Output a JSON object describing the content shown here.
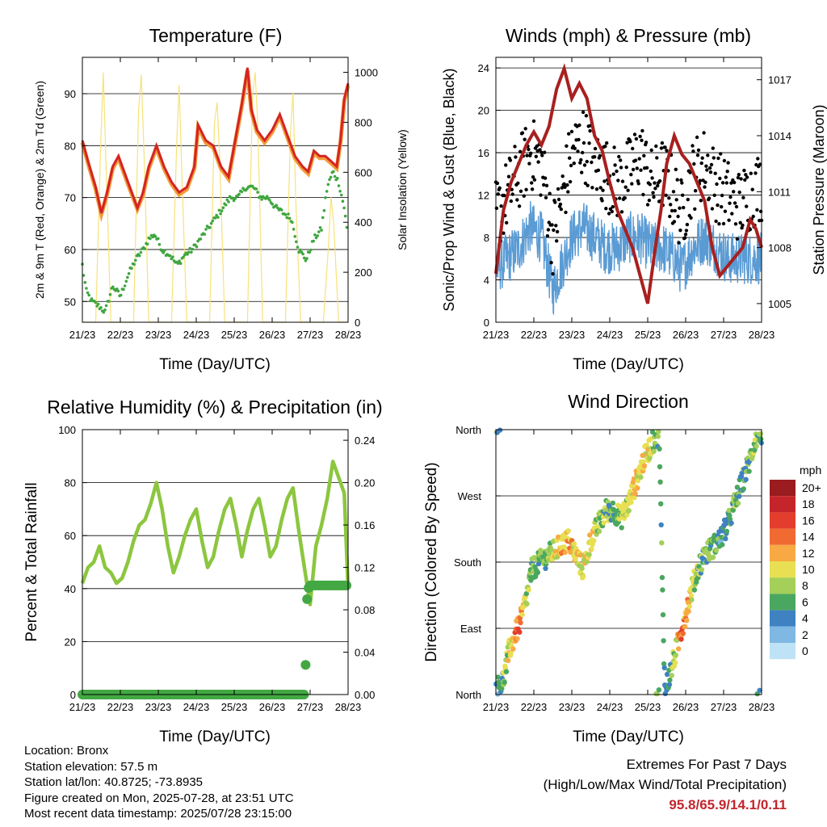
{
  "panels": {
    "temperature": {
      "title": "Temperature (F)",
      "xlabel": "Time (Day/UTC)",
      "ylabel_left": "2m & 9m T (Red, Orange) & 2m Td (Green)",
      "ylabel_right": "Solar Insolation (Yellow)"
    },
    "winds": {
      "title": "Winds (mph) & Pressure (mb)",
      "xlabel": "Time (Day/UTC)",
      "ylabel_left": "Sonic/Prop Wind & Gust (Blue, Black)",
      "ylabel_right": "Station Pressure (Maroon)"
    },
    "humidity": {
      "title": "Relative Humidity (%) & Precipitation (in)",
      "xlabel": "Time (Day/UTC)",
      "ylabel_left": "Percent & Total Rainfall"
    },
    "direction": {
      "title": "Wind Direction",
      "xlabel": "Time (Day/UTC)",
      "ylabel_left": "Direction (Colored By Speed)",
      "colorbar_title": "mph",
      "colorbar_labels": [
        "20+",
        "18",
        "16",
        "14",
        "12",
        "10",
        "8",
        "6",
        "4",
        "2",
        "0"
      ],
      "colorbar_colors": [
        "#9a1c1f",
        "#c5252a",
        "#e23d2d",
        "#f06a32",
        "#f8a943",
        "#e8df52",
        "#a4cf59",
        "#4aa75f",
        "#3f82c2",
        "#7fb8e2",
        "#bfe3f6"
      ]
    }
  },
  "chart_data": [
    {
      "type": "line",
      "title": "Temperature (F)",
      "xlabel": "Time (Day/UTC)",
      "x_ticks": [
        "21/23",
        "22/23",
        "23/23",
        "24/23",
        "25/23",
        "26/23",
        "27/23",
        "28/23"
      ],
      "y_ticks_left": [
        50,
        60,
        70,
        80,
        90
      ],
      "y_ticks_right": [
        0,
        200,
        400,
        600,
        800,
        1000
      ],
      "ylim_left": [
        46,
        97
      ],
      "ylim_right": [
        0,
        1060
      ],
      "grid": true,
      "series": [
        {
          "color": "#d42424",
          "x_days": [
            0,
            0.15,
            0.35,
            0.5,
            0.65,
            0.8,
            0.95,
            1.1,
            1.25,
            1.45,
            1.6,
            1.75,
            1.95,
            2.15,
            2.35,
            2.55,
            2.75,
            2.95,
            3.05,
            3.25,
            3.45,
            3.65,
            3.85,
            4.0,
            4.2,
            4.35,
            4.45,
            4.6,
            4.8,
            5.0,
            5.2,
            5.4,
            5.6,
            5.8,
            5.95,
            6.1,
            6.25,
            6.4,
            6.55,
            6.7,
            6.8,
            6.9,
            7.0
          ],
          "values": [
            81,
            77,
            72,
            67,
            71,
            76,
            78,
            75,
            72,
            68,
            71,
            76,
            80,
            76,
            73,
            71,
            72,
            76,
            84,
            81,
            80,
            76,
            74,
            80,
            88,
            95,
            87,
            83,
            81,
            83,
            86,
            82,
            78,
            76,
            75,
            79,
            78,
            78,
            77,
            76,
            81,
            89,
            92
          ]
        },
        {
          "color": "#f29b38",
          "x_days": [
            0,
            0.15,
            0.35,
            0.5,
            0.65,
            0.8,
            0.95,
            1.1,
            1.25,
            1.45,
            1.6,
            1.75,
            1.95,
            2.15,
            2.35,
            2.55,
            2.75,
            2.95,
            3.05,
            3.25,
            3.45,
            3.65,
            3.85,
            4.0,
            4.2,
            4.35,
            4.45,
            4.6,
            4.8,
            5.0,
            5.2,
            5.4,
            5.6,
            5.8,
            5.95,
            6.1,
            6.25,
            6.4,
            6.55,
            6.7,
            6.8,
            6.9,
            7.0
          ],
          "values": [
            80.6,
            76.6,
            71.6,
            66.8,
            70.6,
            75.6,
            77.6,
            74.6,
            71.6,
            67.8,
            70.6,
            75.6,
            79.6,
            75.6,
            72.6,
            70.6,
            71.6,
            75.6,
            83.6,
            80.6,
            79.6,
            75.6,
            73.6,
            79.6,
            87.6,
            94.5,
            86.6,
            82.6,
            80.6,
            82.6,
            85.6,
            81.6,
            77.6,
            75.6,
            74.6,
            78.6,
            77.6,
            77.6,
            76.6,
            75.6,
            80.6,
            88.6,
            91.6
          ]
        },
        {
          "color": "#3fa63f",
          "x_days": [
            0,
            0.1,
            0.25,
            0.45,
            0.6,
            0.8,
            1.0,
            1.2,
            1.4,
            1.6,
            1.75,
            1.9,
            2.1,
            2.3,
            2.5,
            2.7,
            2.9,
            3.1,
            3.3,
            3.5,
            3.7,
            3.9,
            4.1,
            4.3,
            4.5,
            4.7,
            4.9,
            5.1,
            5.3,
            5.5,
            5.7,
            5.9,
            6.1,
            6.3,
            6.45,
            6.6,
            6.75,
            6.9,
            7.0
          ],
          "values": [
            57,
            52,
            50,
            49,
            48,
            53,
            51,
            55,
            58,
            60,
            62,
            63,
            60,
            59,
            57,
            59,
            60,
            62,
            64,
            66,
            68,
            70,
            70,
            72,
            72,
            70,
            70,
            68,
            67,
            66,
            60,
            58,
            62,
            64,
            72,
            75,
            73,
            68,
            62
          ]
        },
        {
          "color": "#f7e27a",
          "x_days": [
            0,
            0.35,
            0.48,
            0.55,
            0.62,
            0.75,
            1.35,
            1.48,
            1.55,
            1.62,
            1.75,
            2.35,
            2.48,
            2.55,
            2.62,
            2.75,
            3.35,
            3.48,
            3.55,
            3.62,
            3.75,
            4.35,
            4.48,
            4.55,
            4.62,
            4.75,
            5.35,
            5.48,
            5.55,
            5.62,
            5.75,
            6.35,
            6.48,
            6.55,
            6.62,
            6.75,
            7.0
          ],
          "values": [
            0,
            0,
            700,
            1000,
            650,
            0,
            0,
            850,
            990,
            700,
            0,
            0,
            700,
            950,
            600,
            0,
            0,
            800,
            880,
            650,
            0,
            0,
            900,
            1000,
            800,
            0,
            0,
            750,
            920,
            500,
            0,
            0,
            300,
            500,
            400,
            0,
            0
          ]
        }
      ]
    },
    {
      "type": "scatter",
      "title": "Winds (mph) & Pressure (mb)",
      "xlabel": "Time (Day/UTC)",
      "x_ticks": [
        "21/23",
        "22/23",
        "23/23",
        "24/23",
        "25/23",
        "26/23",
        "27/23",
        "28/23"
      ],
      "y_ticks_left": [
        0,
        4,
        8,
        12,
        16,
        20,
        24
      ],
      "y_ticks_right": [
        1005,
        1008,
        1011,
        1014,
        1017
      ],
      "ylim_left": [
        0,
        25
      ],
      "ylim_right": [
        1004.0,
        1018.2
      ],
      "grid": true,
      "series": [
        {
          "color": "#000000",
          "x_days": [
            0,
            0.3,
            0.6,
            0.9,
            1.2,
            1.5,
            1.7,
            2.0,
            2.3,
            2.6,
            2.9,
            3.2,
            3.5,
            3.8,
            4.1,
            4.4,
            4.7,
            4.9,
            5.2,
            5.5,
            5.8,
            6.1,
            6.4,
            6.7,
            7.0
          ],
          "values": [
            10,
            12,
            14,
            16,
            15,
            8,
            11,
            16,
            17,
            15,
            14,
            13,
            14,
            16,
            13,
            14,
            12,
            10,
            14,
            15,
            13,
            12,
            11,
            12,
            13
          ]
        },
        {
          "color": "#5a9bd4",
          "x_days": [
            0,
            0.3,
            0.6,
            0.9,
            1.2,
            1.5,
            1.7,
            2.0,
            2.3,
            2.6,
            2.9,
            3.2,
            3.5,
            3.8,
            4.1,
            4.4,
            4.7,
            4.9,
            5.2,
            5.5,
            5.8,
            6.1,
            6.4,
            6.7,
            7.0
          ],
          "values": [
            5,
            6,
            7,
            9,
            8,
            3,
            5,
            8,
            9,
            8,
            7,
            7,
            8,
            8,
            7,
            7,
            6,
            5,
            7,
            8,
            7,
            6,
            6,
            6,
            6
          ]
        },
        {
          "color": "#a8201f",
          "x_days": [
            0,
            0.2,
            0.4,
            0.6,
            0.8,
            1.0,
            1.2,
            1.4,
            1.6,
            1.8,
            2.0,
            2.2,
            2.4,
            2.6,
            2.8,
            3.0,
            3.2,
            3.4,
            3.6,
            3.8,
            4.0,
            4.2,
            4.35,
            4.5,
            4.7,
            4.9,
            5.1,
            5.3,
            5.5,
            5.7,
            5.9,
            6.1,
            6.3,
            6.5,
            6.7,
            6.85,
            7.0
          ],
          "values": [
            1006.6,
            1010.0,
            1011.5,
            1012.5,
            1013.5,
            1014.2,
            1013.5,
            1014.5,
            1016.5,
            1017.6,
            1016.0,
            1016.8,
            1016.0,
            1014.0,
            1013.2,
            1011.5,
            1010.0,
            1009.0,
            1008.0,
            1006.5,
            1005.0,
            1008.0,
            1010.0,
            1012.5,
            1014.0,
            1013.0,
            1012.5,
            1011.5,
            1010.5,
            1008.0,
            1006.5,
            1007.0,
            1007.5,
            1008.0,
            1009.5,
            1009.0,
            1008.0
          ]
        }
      ]
    },
    {
      "type": "line",
      "title": "Relative Humidity (%) & Precipitation (in)",
      "xlabel": "Time (Day/UTC)",
      "x_ticks": [
        "21/23",
        "22/23",
        "23/23",
        "24/23",
        "25/23",
        "26/23",
        "27/23",
        "28/23"
      ],
      "y_ticks_left": [
        0,
        20,
        40,
        60,
        80,
        100
      ],
      "y_ticks_right": [
        "0.00",
        "0.04",
        "0.08",
        "0.12",
        "0.16",
        "0.20",
        "0.24"
      ],
      "ylim_left": [
        0,
        100
      ],
      "ylim_right": [
        0,
        0.25
      ],
      "grid": true,
      "series": [
        {
          "color": "#8cc63f",
          "x_days": [
            0,
            0.15,
            0.3,
            0.45,
            0.6,
            0.75,
            0.9,
            1.05,
            1.2,
            1.35,
            1.5,
            1.65,
            1.8,
            1.95,
            2.1,
            2.25,
            2.4,
            2.55,
            2.7,
            2.85,
            3.0,
            3.15,
            3.3,
            3.45,
            3.6,
            3.75,
            3.9,
            4.05,
            4.2,
            4.35,
            4.5,
            4.65,
            4.8,
            4.95,
            5.1,
            5.25,
            5.4,
            5.55,
            5.7,
            5.85,
            6.0,
            6.15,
            6.3,
            6.45,
            6.6,
            6.75,
            6.9,
            7.0
          ],
          "values": [
            42,
            48,
            50,
            56,
            48,
            46,
            42,
            44,
            50,
            58,
            64,
            66,
            72,
            80,
            70,
            56,
            46,
            52,
            60,
            66,
            70,
            58,
            48,
            52,
            62,
            70,
            74,
            64,
            52,
            62,
            70,
            74,
            64,
            52,
            56,
            66,
            74,
            78,
            62,
            48,
            34,
            56,
            64,
            74,
            88,
            82,
            76,
            40
          ]
        },
        {
          "color": "#43a843",
          "x_days": [
            0,
            0.5,
            1,
            1.5,
            2,
            2.5,
            3,
            3.5,
            4,
            4.5,
            5,
            5.5,
            5.85,
            5.88,
            5.9,
            5.92,
            5.95,
            6.0,
            6.3,
            6.6,
            7.0
          ],
          "values": [
            0,
            0,
            0,
            0,
            0,
            0,
            0,
            0,
            0,
            0,
            0,
            0,
            0,
            0.028,
            0.064,
            0.09,
            0.1,
            0.103,
            0.103,
            0.103,
            0.103
          ]
        }
      ]
    },
    {
      "type": "scatter",
      "title": "Wind Direction",
      "xlabel": "Time (Day/UTC)",
      "x_ticks": [
        "21/23",
        "22/23",
        "23/23",
        "24/23",
        "25/23",
        "26/23",
        "27/23",
        "28/23"
      ],
      "y_ticks": [
        "North",
        "East",
        "South",
        "West",
        "North"
      ],
      "ylim_degrees": [
        0,
        360
      ],
      "grid": true,
      "colorbar": {
        "title": "mph",
        "levels": [
          0,
          2,
          4,
          6,
          8,
          10,
          12,
          14,
          16,
          18,
          20
        ]
      },
      "series": [
        {
          "x_days": [
            0.05,
            0.2,
            0.35,
            0.5,
            0.65,
            0.8,
            0.95,
            1.15,
            1.4,
            1.65,
            1.9,
            2.1,
            2.3,
            2.5,
            2.7,
            2.9,
            3.1,
            3.3,
            3.5,
            3.7,
            3.9,
            4.1,
            4.3,
            4.45,
            4.6,
            4.75,
            4.9,
            5.05,
            5.2,
            5.35,
            5.5,
            5.7,
            5.9,
            6.1,
            6.3,
            6.5,
            6.7,
            6.85,
            7.0
          ],
          "values_deg": [
            10,
            20,
            60,
            80,
            100,
            130,
            170,
            180,
            190,
            200,
            210,
            190,
            170,
            210,
            230,
            250,
            250,
            240,
            260,
            290,
            320,
            340,
            355,
            5,
            30,
            60,
            90,
            120,
            150,
            175,
            190,
            200,
            210,
            230,
            260,
            290,
            320,
            350,
            355
          ],
          "speeds_mph": [
            6,
            8,
            10,
            14,
            16,
            9,
            8,
            7,
            9,
            12,
            13,
            11,
            10,
            12,
            9,
            8,
            7,
            9,
            10,
            11,
            12,
            9,
            7,
            6,
            8,
            10,
            16,
            12,
            9,
            8,
            7,
            8,
            6,
            7,
            8,
            6,
            7,
            8,
            6
          ]
        }
      ]
    }
  ],
  "info": {
    "location": "Location: Bronx",
    "elevation": "Station elevation: 57.5 m",
    "latlon": "Station lat/lon: 40.8725; -73.8935",
    "created": "Figure created on Mon, 2025-07-28, at 23:51 UTC",
    "recent": "Most recent data timestamp: 2025/07/28 23:15:00"
  },
  "extremes": {
    "title": "Extremes For Past 7 Days",
    "subtitle": "(High/Low/Max Wind/Total Precipitation)",
    "values": "95.8/65.9/14.1/0.11"
  }
}
